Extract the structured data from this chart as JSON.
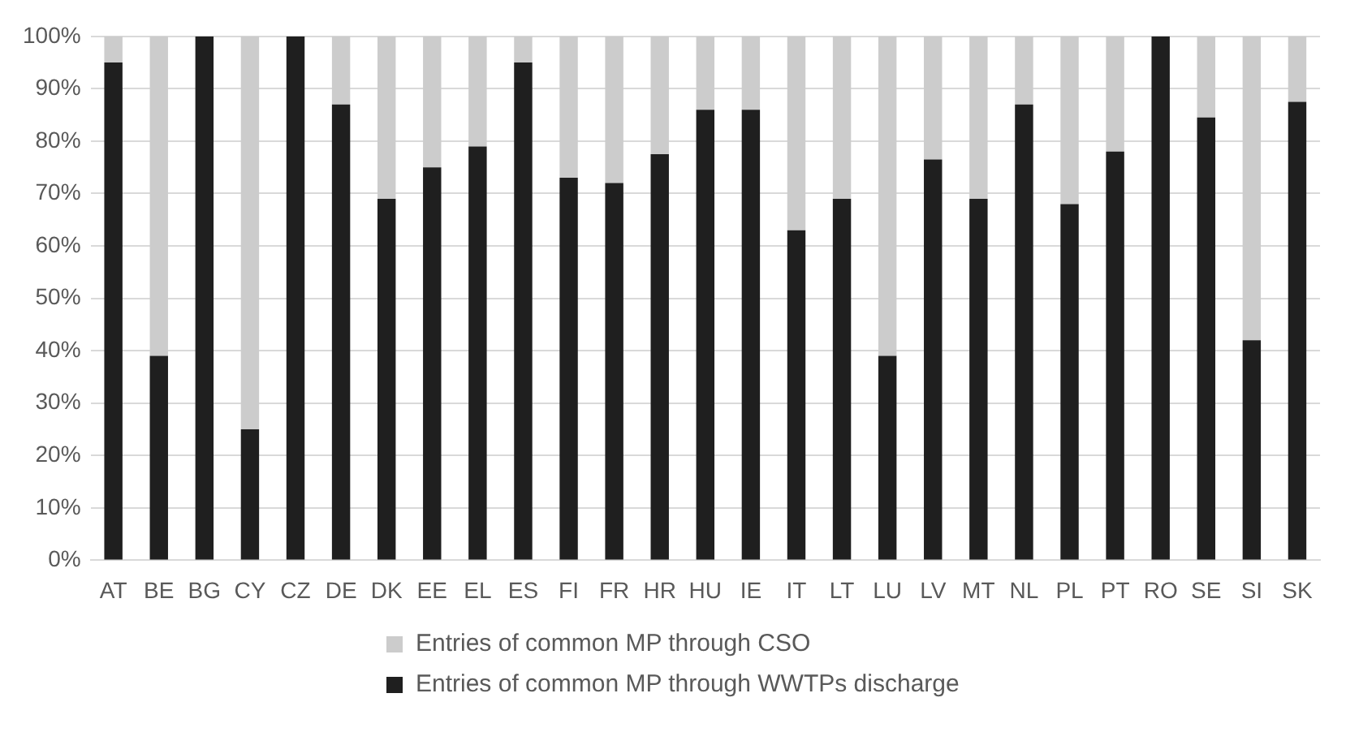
{
  "chart_data": {
    "type": "bar",
    "stacked": true,
    "categories": [
      "AT",
      "BE",
      "BG",
      "CY",
      "CZ",
      "DE",
      "DK",
      "EE",
      "EL",
      "ES",
      "FI",
      "FR",
      "HR",
      "HU",
      "IE",
      "IT",
      "LT",
      "LU",
      "LV",
      "MT",
      "NL",
      "PL",
      "PT",
      "RO",
      "SE",
      "SI",
      "SK"
    ],
    "series": [
      {
        "name": "Entries of common MP through WWTPs discharge",
        "color": "#1f1f1f",
        "values": [
          95,
          39,
          100,
          25,
          100,
          87,
          69,
          75,
          79,
          95,
          73,
          72,
          77.5,
          86,
          86,
          63,
          69,
          39,
          76.5,
          69,
          87,
          68,
          78,
          100,
          84.5,
          42,
          87.5
        ]
      },
      {
        "name": "Entries of common MP through CSO",
        "color": "#cccccc",
        "values": [
          5,
          61,
          0,
          75,
          0,
          13,
          31,
          25,
          21,
          5,
          27,
          28,
          22.5,
          14,
          14,
          37,
          31,
          61,
          23.5,
          31,
          13,
          32,
          22,
          0,
          15.5,
          58,
          12.5
        ]
      }
    ],
    "ylim": [
      0,
      100
    ],
    "yticks": [
      {
        "value": 0,
        "label": "0%"
      },
      {
        "value": 10,
        "label": "10%"
      },
      {
        "value": 20,
        "label": "20%"
      },
      {
        "value": 30,
        "label": "30%"
      },
      {
        "value": 40,
        "label": "40%"
      },
      {
        "value": 50,
        "label": "50%"
      },
      {
        "value": 60,
        "label": "60%"
      },
      {
        "value": 70,
        "label": "70%"
      },
      {
        "value": 80,
        "label": "80%"
      },
      {
        "value": 90,
        "label": "90%"
      },
      {
        "value": 100,
        "label": "100%"
      }
    ],
    "grid": "y",
    "legend": "bottom"
  }
}
